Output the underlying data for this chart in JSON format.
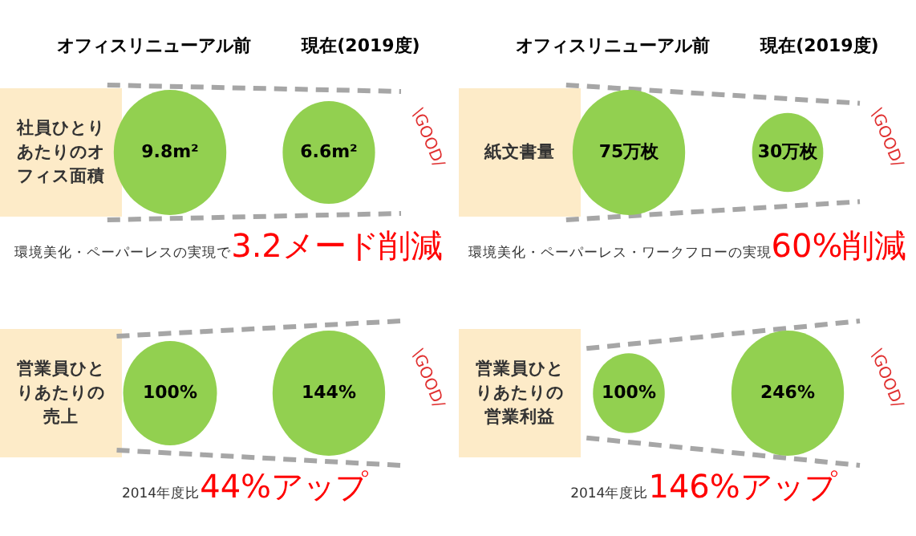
{
  "chart_data": [
    {
      "type": "other",
      "categories": [
        "オフィスリニューアル前",
        "現在(2019度)"
      ],
      "ylabel": "社員ひとりあたりのオフィス面積",
      "values": [
        9.8,
        6.6
      ],
      "value_labels": [
        "9.8m²",
        "6.6m²"
      ],
      "color": "#92d050",
      "annotations": [
        "\\GOOD/",
        "環境美化・ペーパーレスの実現で",
        "3.2メード削減"
      ]
    },
    {
      "type": "other",
      "categories": [
        "オフィスリニューアル前",
        "現在(2019度)"
      ],
      "ylabel": "紙文書量",
      "values": [
        75,
        30
      ],
      "value_labels": [
        "75万枚",
        "30万枚"
      ],
      "color": "#92d050",
      "annotations": [
        "\\GOOD/",
        "環境美化・ペーパーレス・ワークフローの実現",
        "60%削減"
      ]
    },
    {
      "type": "other",
      "categories": [
        null,
        null
      ],
      "ylabel": "営業員ひとりあたりの売上",
      "values": [
        100,
        144
      ],
      "value_labels": [
        "100%",
        "144%"
      ],
      "color": "#92d050",
      "annotations": [
        "\\GOOD/",
        "2014年度比",
        "44%アップ"
      ]
    },
    {
      "type": "other",
      "categories": [
        null,
        null
      ],
      "ylabel": "営業員ひとりあたりの営業利益",
      "values": [
        100,
        246
      ],
      "value_labels": [
        "100%",
        "246%"
      ],
      "color": "#92d050",
      "annotations": [
        "\\GOOD/",
        "2014年度比",
        "146%アップ"
      ]
    }
  ]
}
